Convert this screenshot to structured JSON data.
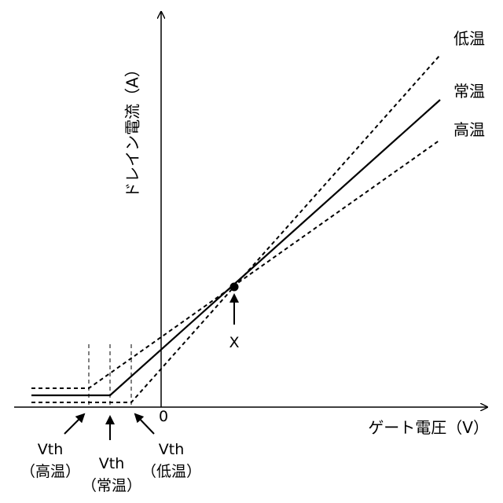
{
  "diagram": {
    "y_axis_label": "ドレイン電流（A）",
    "x_axis_label": "ゲート電圧（V）",
    "origin_label": "0",
    "crosspoint_label": "X",
    "curves": [
      {
        "name": "低温",
        "style": "dashed"
      },
      {
        "name": "常温",
        "style": "solid"
      },
      {
        "name": "高温",
        "style": "dashed"
      }
    ],
    "vth_labels": [
      {
        "top": "Vth",
        "bottom": "（高温）"
      },
      {
        "top": "Vth",
        "bottom": "（常温）"
      },
      {
        "top": "Vth",
        "bottom": "（低温）"
      }
    ],
    "colors": {
      "line": "#000000",
      "background": "#ffffff"
    }
  }
}
